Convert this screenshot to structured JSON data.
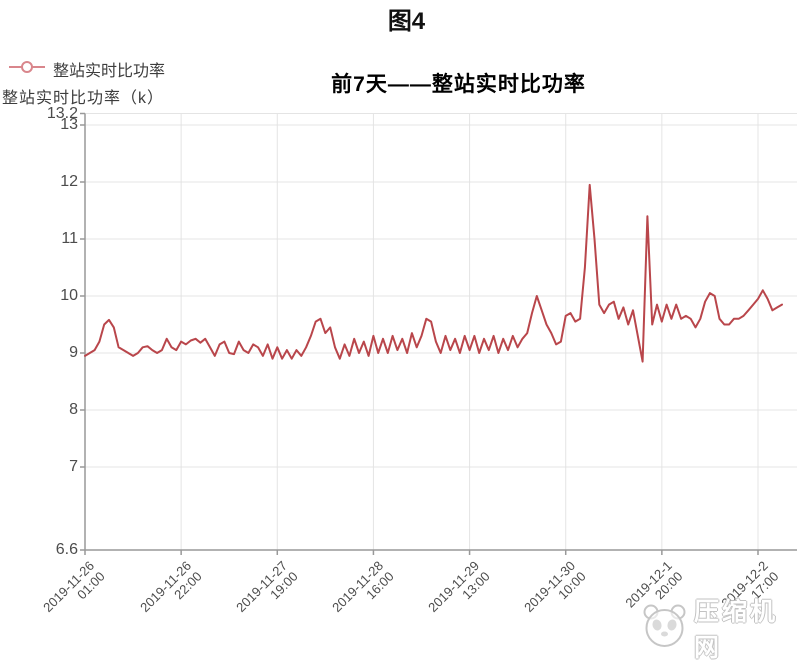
{
  "page": {
    "figure_label": "图4",
    "watermark_text": "压缩机网"
  },
  "chart": {
    "title": "前7天——整站实时比功率",
    "legend_label": "整站实时比功率",
    "y_axis_name": "整站实时比功率（k）",
    "colors": {
      "line": "#b9464b",
      "legend_marker": "#d9868c",
      "axis": "#999999",
      "grid": "#e4e4e4",
      "label": "#4c4c4c"
    }
  },
  "chart_data": {
    "type": "line",
    "title": "前7天——整站实时比功率",
    "series_name": "整站实时比功率",
    "ylabel": "整站实时比功率（k）",
    "ylim": [
      6.6,
      13.2
    ],
    "y_ticks": [
      13.2,
      13,
      12,
      11,
      10,
      9,
      8,
      7,
      6.6
    ],
    "y_gridline_values": [
      13,
      12,
      11,
      10,
      9,
      8,
      7
    ],
    "grid": true,
    "legend_position": "top-left",
    "x_label_rotation": 45,
    "line_color": "#b9464b",
    "x_tick_labels": [
      {
        "date": "2019-11-26",
        "time": "01:00"
      },
      {
        "date": "2019-11-26",
        "time": "22:00"
      },
      {
        "date": "2019-11-27",
        "time": "19:00"
      },
      {
        "date": "2019-11-28",
        "time": "16:00"
      },
      {
        "date": "2019-11-29",
        "time": "13:00"
      },
      {
        "date": "2019-11-30",
        "time": "10:00"
      },
      {
        "date": "2019-12-1",
        "time": "20:00"
      },
      {
        "date": "2019-12-2",
        "time": "17:00"
      }
    ],
    "values": [
      8.95,
      9.0,
      9.05,
      9.2,
      9.5,
      9.58,
      9.45,
      9.1,
      9.05,
      9.0,
      8.95,
      9.0,
      9.1,
      9.12,
      9.05,
      9.0,
      9.05,
      9.25,
      9.1,
      9.05,
      9.2,
      9.15,
      9.22,
      9.25,
      9.18,
      9.25,
      9.1,
      8.95,
      9.15,
      9.2,
      9.0,
      8.98,
      9.2,
      9.05,
      9.0,
      9.15,
      9.1,
      8.95,
      9.15,
      8.9,
      9.1,
      8.9,
      9.05,
      8.9,
      9.05,
      8.95,
      9.1,
      9.3,
      9.55,
      9.6,
      9.35,
      9.45,
      9.1,
      8.9,
      9.15,
      8.95,
      9.25,
      9.0,
      9.2,
      8.95,
      9.3,
      9.0,
      9.25,
      9.0,
      9.3,
      9.05,
      9.25,
      9.0,
      9.35,
      9.1,
      9.3,
      9.6,
      9.55,
      9.2,
      9.0,
      9.3,
      9.05,
      9.25,
      9.0,
      9.3,
      9.05,
      9.3,
      9.0,
      9.25,
      9.05,
      9.3,
      9.0,
      9.25,
      9.05,
      9.3,
      9.1,
      9.25,
      9.35,
      9.7,
      10.0,
      9.75,
      9.5,
      9.35,
      9.15,
      9.2,
      9.65,
      9.7,
      9.55,
      9.6,
      10.5,
      11.95,
      11.0,
      9.85,
      9.7,
      9.85,
      9.9,
      9.6,
      9.8,
      9.5,
      9.75,
      9.3,
      8.85,
      11.4,
      9.5,
      9.85,
      9.55,
      9.85,
      9.6,
      9.85,
      9.6,
      9.65,
      9.6,
      9.45,
      9.6,
      9.9,
      10.05,
      10.0,
      9.6,
      9.5,
      9.5,
      9.6,
      9.6,
      9.65,
      9.75,
      9.85,
      9.95,
      10.1,
      9.95,
      9.75,
      9.8,
      9.85
    ]
  }
}
